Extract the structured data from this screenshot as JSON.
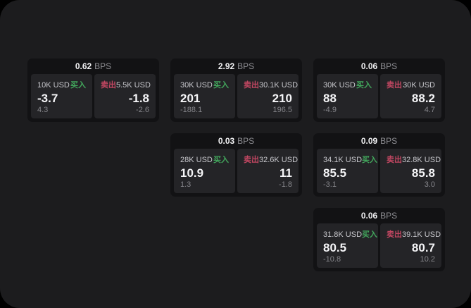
{
  "labels": {
    "bps_unit": "BPS",
    "buy": "买入",
    "sell": "卖出"
  },
  "colors": {
    "page_background": "#000000",
    "frame_background": "#1c1c1e",
    "card_background": "#121214",
    "panel_background": "#242427",
    "buy_green": "#42a65c",
    "sell_red": "#c24762"
  },
  "cards": [
    {
      "bps": "0.62",
      "buy": {
        "amount": "10K USD",
        "price": "-3.7",
        "sub": "4.3"
      },
      "sell": {
        "amount": "5.5K USD",
        "price": "-1.8",
        "sub": "-2.6"
      }
    },
    {
      "bps": "2.92",
      "buy": {
        "amount": "30K USD",
        "price": "201",
        "sub": "-188.1"
      },
      "sell": {
        "amount": "30.1K USD",
        "price": "210",
        "sub": "196.5"
      }
    },
    {
      "bps": "0.06",
      "buy": {
        "amount": "30K USD",
        "price": "88",
        "sub": "-4.9"
      },
      "sell": {
        "amount": "30K USD",
        "price": "88.2",
        "sub": "4.7"
      }
    },
    {
      "bps": "0.03",
      "buy": {
        "amount": "28K USD",
        "price": "10.9",
        "sub": "1.3"
      },
      "sell": {
        "amount": "32.6K USD",
        "price": "11",
        "sub": "-1.8"
      }
    },
    {
      "bps": "0.09",
      "buy": {
        "amount": "34.1K USD",
        "price": "85.5",
        "sub": "-3.1"
      },
      "sell": {
        "amount": "32.8K USD",
        "price": "85.8",
        "sub": "3.0"
      }
    },
    {
      "bps": "0.06",
      "buy": {
        "amount": "31.8K USD",
        "price": "80.5",
        "sub": "-10.8"
      },
      "sell": {
        "amount": "39.1K USD",
        "price": "80.7",
        "sub": "10.2"
      }
    }
  ]
}
